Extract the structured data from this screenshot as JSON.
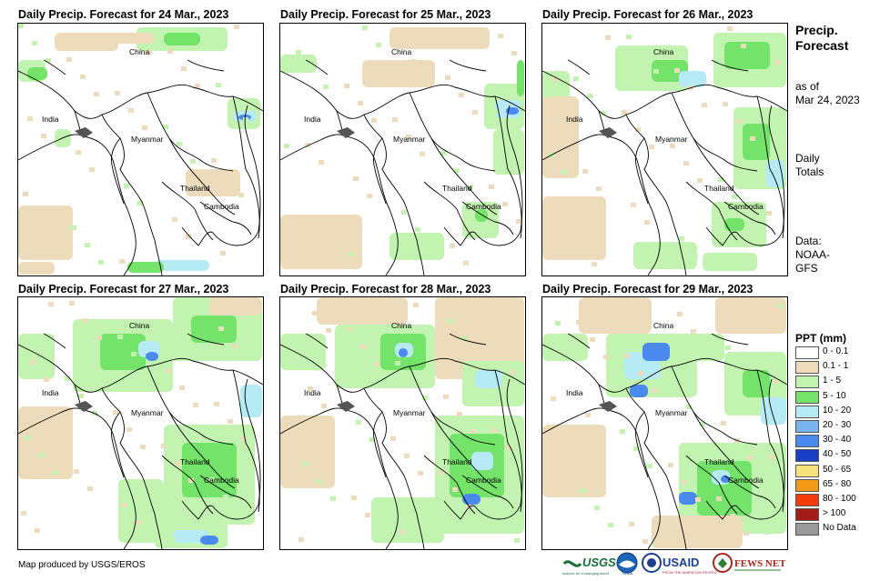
{
  "panels": [
    {
      "title": "Daily Precip. Forecast for 24 Mar., 2023"
    },
    {
      "title": "Daily Precip. Forecast for 25 Mar., 2023"
    },
    {
      "title": "Daily Precip. Forecast for 26 Mar., 2023"
    },
    {
      "title": "Daily Precip. Forecast for 27 Mar., 2023"
    },
    {
      "title": "Daily Precip. Forecast for 28 Mar., 2023"
    },
    {
      "title": "Daily Precip. Forecast for 29 Mar., 2023"
    }
  ],
  "places": {
    "china": "China",
    "india": "India",
    "myanmar": "Myanmar",
    "thailand": "Thailand",
    "cambodia": "Cambodia"
  },
  "sidebar": {
    "title_line1": "Precip.",
    "title_line2": "Forecast",
    "asof_line1": "as of",
    "asof_line2": "Mar 24, 2023",
    "daily_line1": "Daily",
    "daily_line2": "Totals",
    "data_line1": "Data:",
    "data_line2": "NOAA-",
    "data_line3": "GFS"
  },
  "legend": {
    "title": "PPT (mm)",
    "items": [
      {
        "label": "0 - 0.1",
        "color": "#ffffff"
      },
      {
        "label": "0.1 - 1",
        "color": "#ecdcbc"
      },
      {
        "label": "1 - 5",
        "color": "#c3f3b0"
      },
      {
        "label": "5 - 10",
        "color": "#74e36a"
      },
      {
        "label": "10 - 20",
        "color": "#b6eaf4"
      },
      {
        "label": "20 - 30",
        "color": "#7ab4f0"
      },
      {
        "label": "30 - 40",
        "color": "#4a8aee"
      },
      {
        "label": "40 - 50",
        "color": "#1b3fc4"
      },
      {
        "label": "50 - 65",
        "color": "#f5e27d"
      },
      {
        "label": "65 - 80",
        "color": "#f39a1a"
      },
      {
        "label": "80 - 100",
        "color": "#f23c0c"
      },
      {
        "label": "> 100",
        "color": "#a21c1c"
      },
      {
        "label": "No Data",
        "color": "#9a9a9a"
      }
    ]
  },
  "credit": "Map produced by USGS/EROS",
  "logos": {
    "usgs": "USGS",
    "usgs_tagline": "science for a changing world",
    "noaa": "NOAA",
    "usaid": "USAID",
    "usaid_tagline": "FROM THE AMERICAN PEOPLE",
    "fewsnet": "FEWS NET"
  },
  "colors": {
    "tan": "#ecdcbc",
    "light_green": "#c3f3b0",
    "green": "#74e36a",
    "light_blue": "#b6eaf4",
    "blue": "#4a8aee",
    "dark_blue": "#1b3fc4",
    "usgs_green": "#1a6e3a",
    "usaid_blue": "#1d3f8f",
    "fews_red": "#a5261c"
  }
}
